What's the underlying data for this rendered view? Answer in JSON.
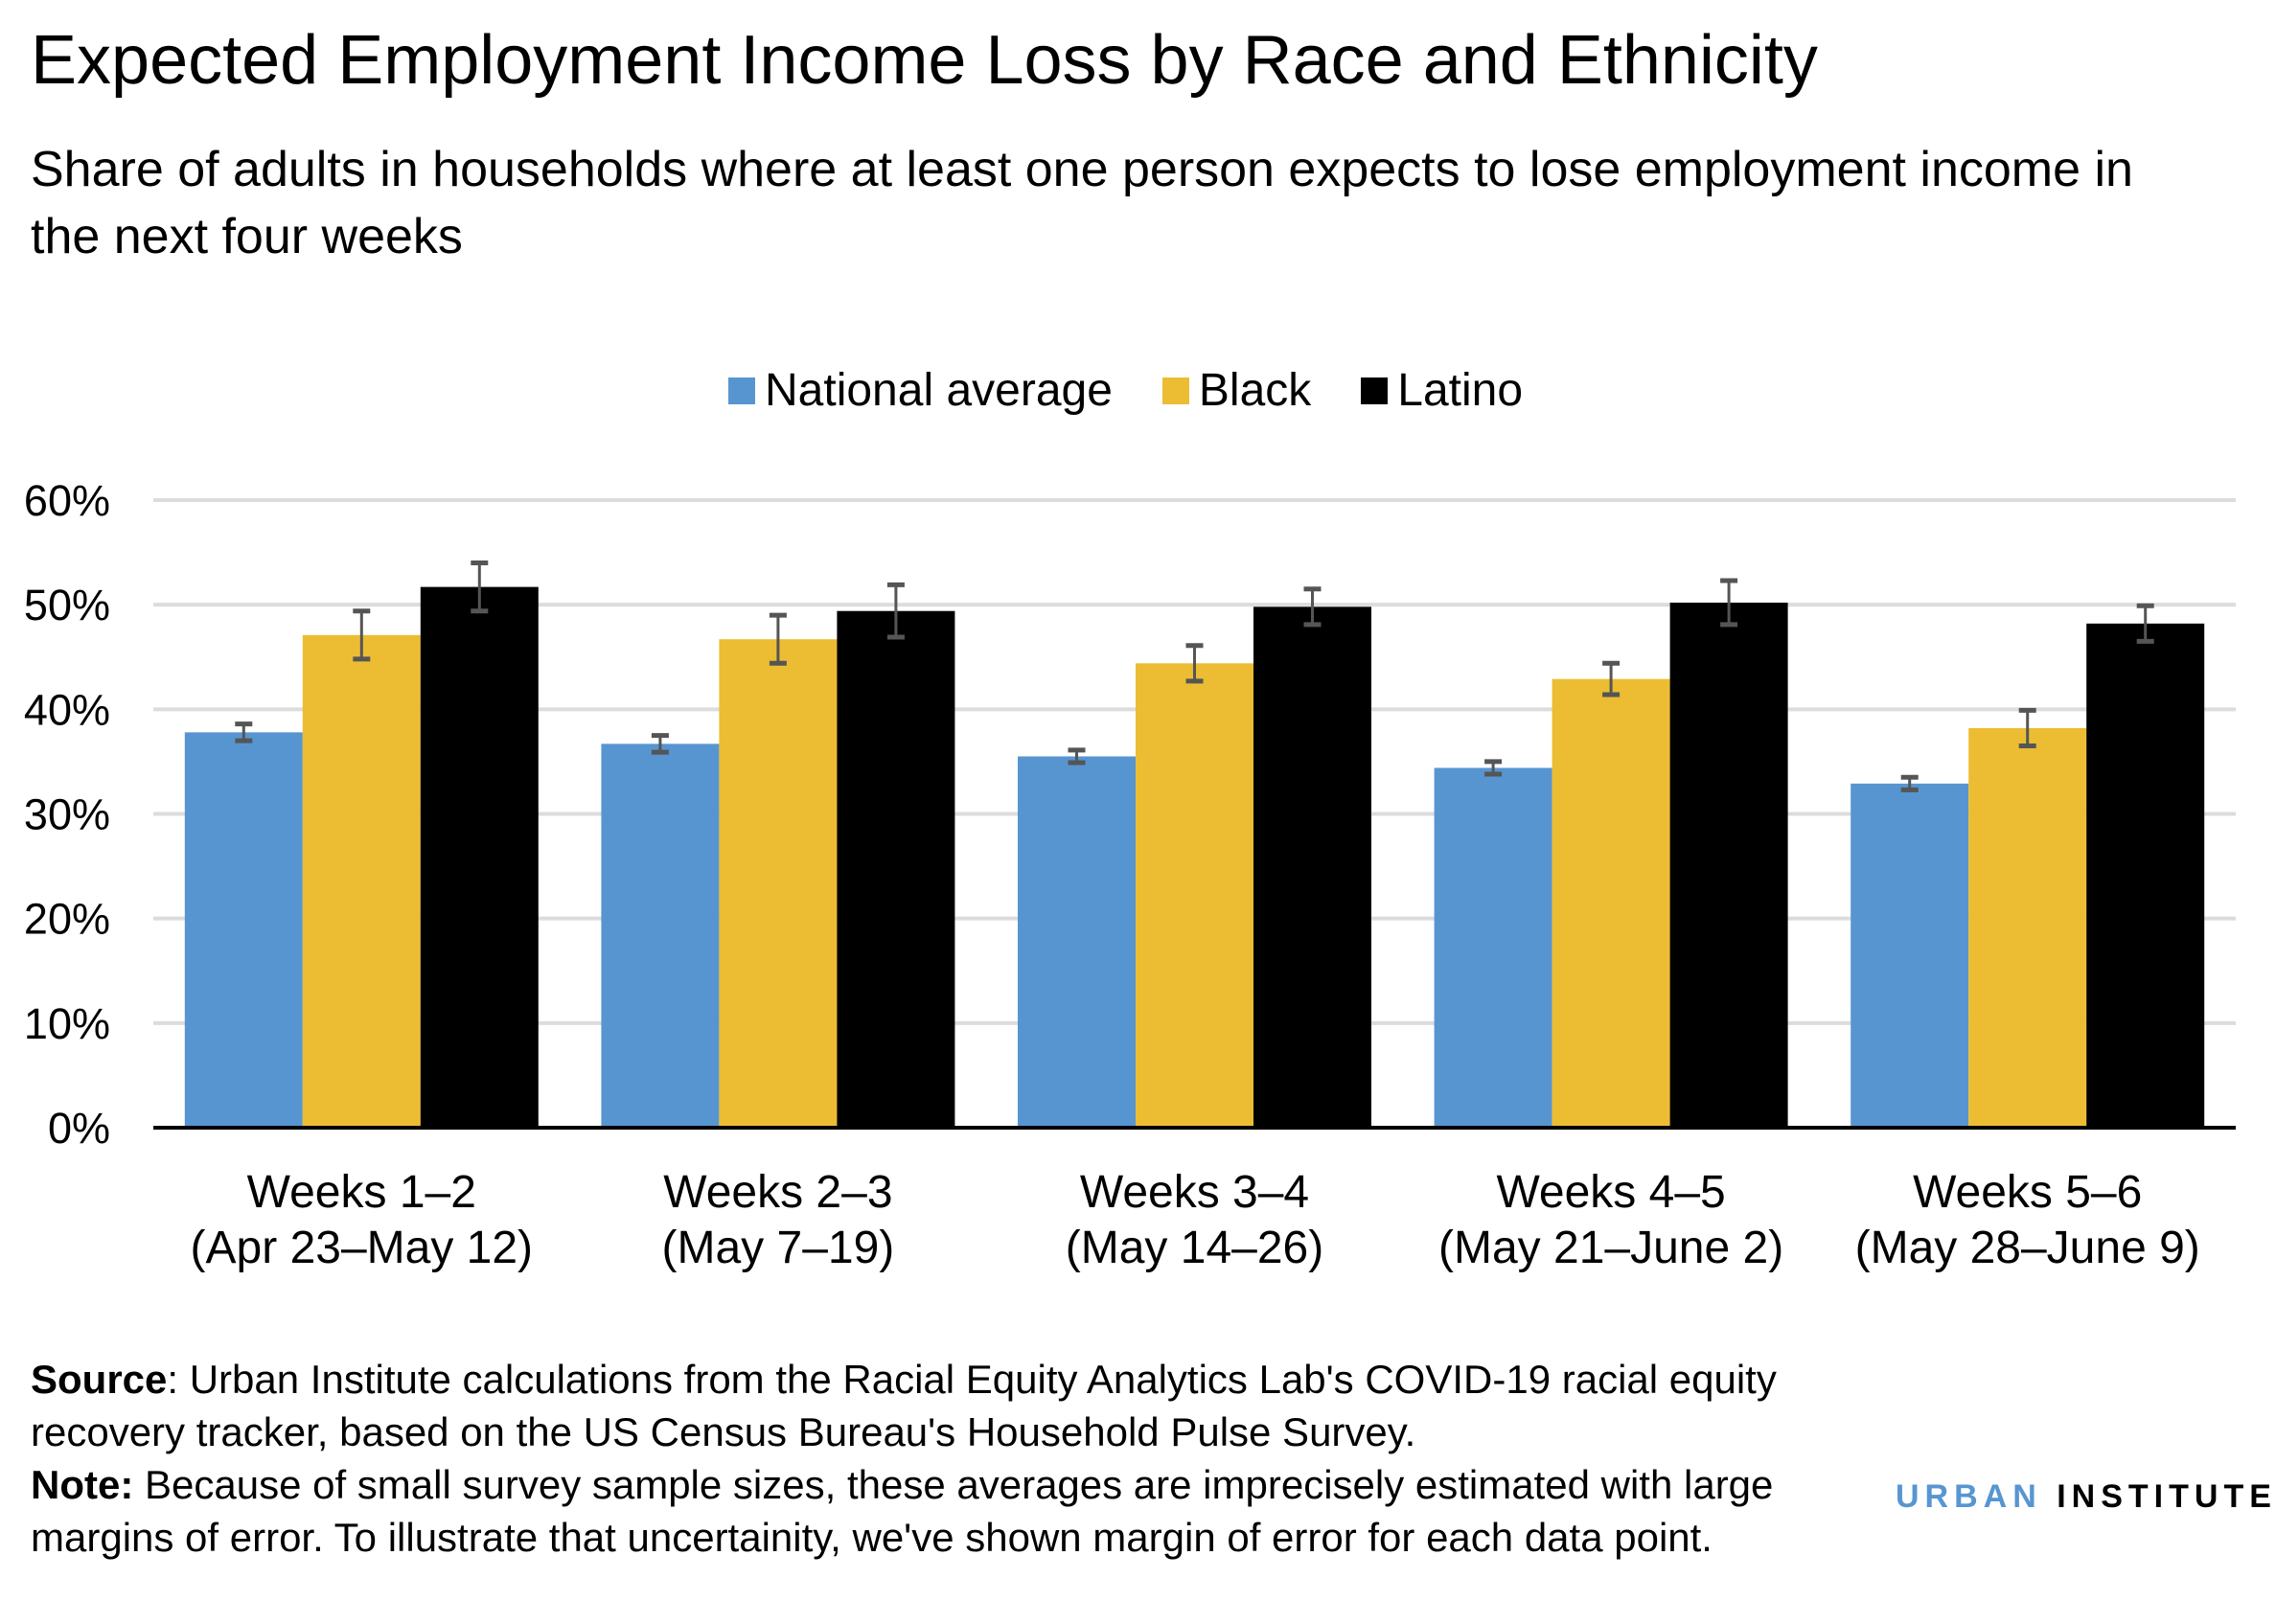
{
  "colors": {
    "national": "#5795d1",
    "black": "#ecbd33",
    "latino": "#000000",
    "grid": "#dcdcdc",
    "errorbar": "#555555",
    "logo_urban": "#5796d1"
  },
  "chart_data": {
    "type": "bar",
    "title": "Expected Employment Income Loss by Race and Ethnicity",
    "subtitle": "Share of adults in households where at least one person expects to lose employment income in the next four weeks",
    "categories": [
      [
        "Weeks 1–2",
        "(Apr 23–May 12)"
      ],
      [
        "Weeks 2–3",
        "(May 7–19)"
      ],
      [
        "Weeks 3–4",
        "(May 14–26)"
      ],
      [
        "Weeks 4–5",
        "(May 21–June 2)"
      ],
      [
        "Weeks 5–6",
        "(May 28–June 9)"
      ]
    ],
    "series": [
      {
        "name": "National average",
        "values": [
          37.8,
          36.7,
          35.5,
          34.4,
          32.9
        ],
        "error": [
          0.8,
          0.8,
          0.6,
          0.6,
          0.6
        ]
      },
      {
        "name": "Black",
        "values": [
          47.1,
          46.7,
          44.4,
          42.9,
          38.2
        ],
        "error": [
          2.3,
          2.3,
          1.7,
          1.5,
          1.7
        ]
      },
      {
        "name": "Latino",
        "values": [
          51.7,
          49.4,
          49.8,
          50.2,
          48.2
        ],
        "error": [
          2.3,
          2.5,
          1.7,
          2.1,
          1.7
        ]
      }
    ],
    "yticks": [
      "0%",
      "10%",
      "20%",
      "30%",
      "40%",
      "50%",
      "60%"
    ],
    "ylim": [
      0,
      60
    ],
    "grid": true,
    "legend_position": "top-center",
    "xlabel": "",
    "ylabel": ""
  },
  "footer": {
    "source_label": "Source",
    "source_text": ": Urban Institute calculations from the Racial Equity Analytics Lab's COVID-19 racial equity recovery tracker, based on the US Census Bureau's Household Pulse Survey.",
    "note_label": "Note:",
    "note_text": " Because of small survey sample sizes, these averages are imprecisely estimated with large margins of error. To illustrate that uncertainity, we've shown margin of error for each data point."
  },
  "logo": {
    "urban": "URBAN",
    "institute": "INSTITUTE"
  }
}
